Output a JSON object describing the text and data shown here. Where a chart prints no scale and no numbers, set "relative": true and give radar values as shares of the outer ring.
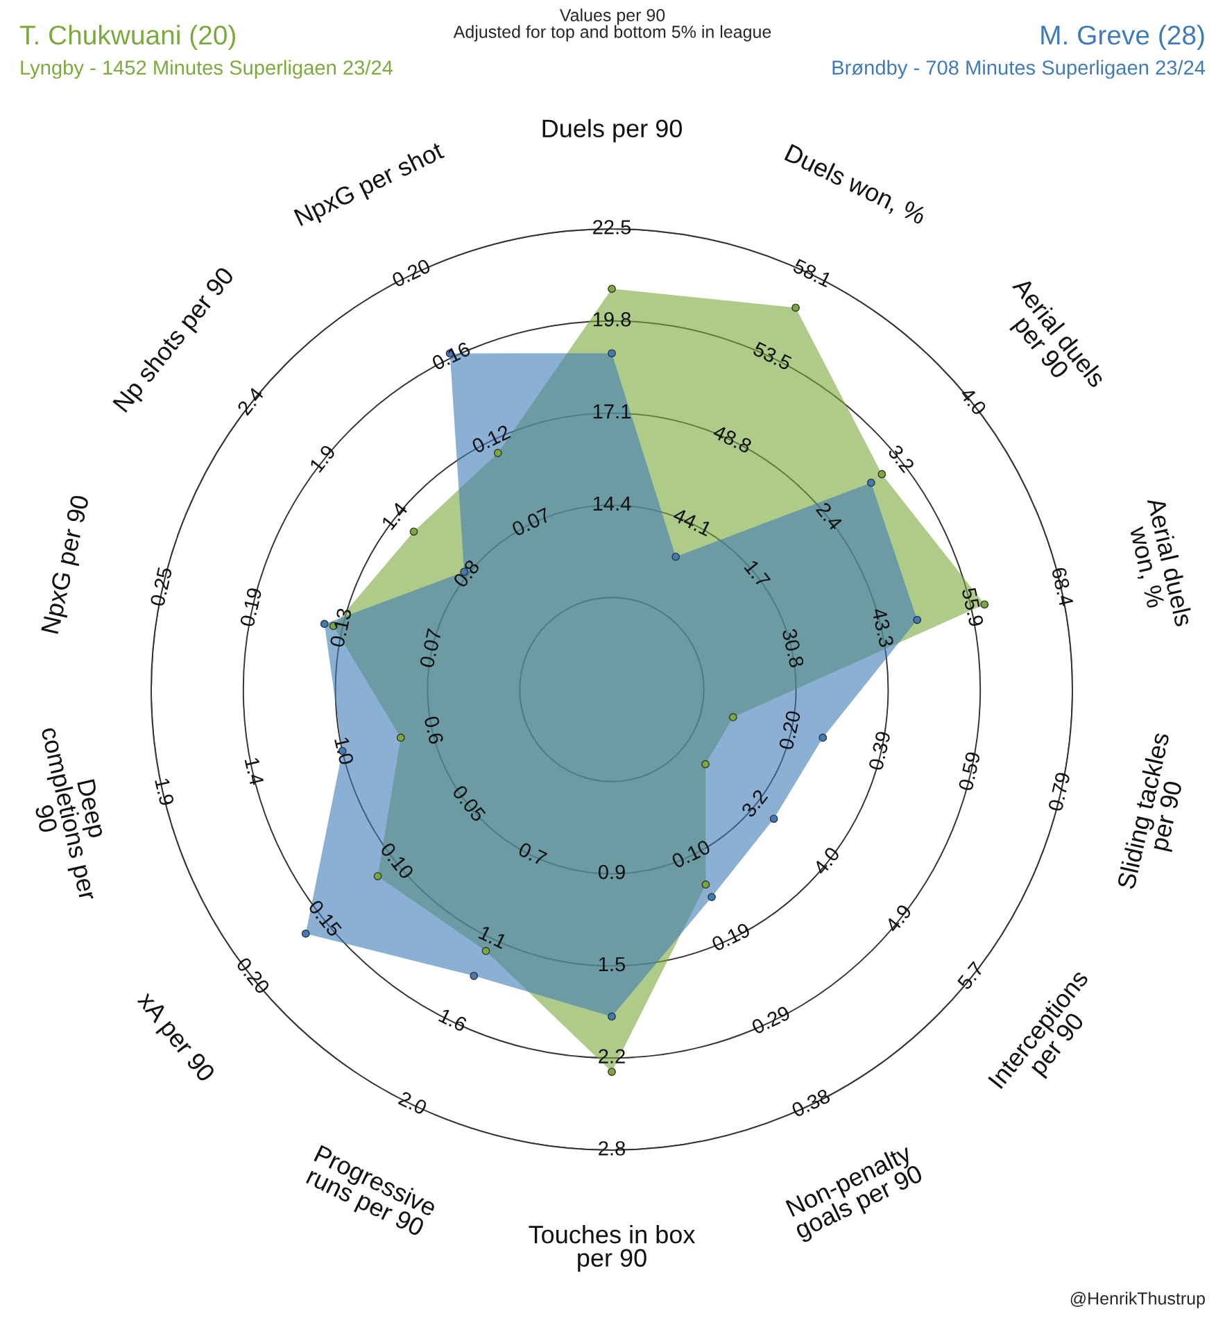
{
  "chart_data": {
    "type": "radar",
    "title": "Values per 90",
    "subtitle": "Adjusted for top and bottom 5% in league",
    "relative": true,
    "grid": true,
    "marker": "circle",
    "categories": [
      "Duels per 90",
      "Duels won, %",
      "Aerial duels\nper 90",
      "Aerial duels\nwon, %",
      "Sliding tackles\nper 90",
      "Interceptions\nper 90",
      "Non-penalty\ngoals per 90",
      "Touches in box\nper 90",
      "Progressive\nruns per 90",
      "xA per 90",
      "Deep\ncompletions per\n90",
      "NpxG per 90",
      "Np shots per 90",
      "NpxG per shot"
    ],
    "series": [
      {
        "name": "T. Chukwuani (20)\nLyngby - 1452 Minutes Superligaen 23/24",
        "color": "#7aa93c",
        "values": [
          0.87,
          0.92,
          0.75,
          0.83,
          0.27,
          0.26,
          0.47,
          0.83,
          0.63,
          0.65,
          0.47,
          0.62,
          0.55,
          0.57
        ]
      },
      {
        "name": "M. Greve (28)\nBrøndby - 708 Minutes Superligaen 23/24",
        "color": "#3f7bb5",
        "values": [
          0.73,
          0.32,
          0.72,
          0.68,
          0.47,
          0.45,
          0.5,
          0.71,
          0.69,
          0.85,
          0.6,
          0.64,
          0.41,
          0.81
        ]
      }
    ],
    "annotations": [
      "@HenrikThustrup",
      {
        "text": "14.4",
        "x": "Duels per 90"
      },
      {
        "text": "17.1",
        "x": "Duels per 90"
      },
      {
        "text": "19.8",
        "x": "Duels per 90"
      },
      {
        "text": "22.5",
        "x": "Duels per 90"
      },
      {
        "text": "44.1",
        "x": "Duels won, %"
      },
      {
        "text": "48.8",
        "x": "Duels won, %"
      },
      {
        "text": "53.5",
        "x": "Duels won, %"
      },
      {
        "text": "58.1",
        "x": "Duels won, %"
      },
      {
        "text": "1.7",
        "x": "Aerial duels\nper 90"
      },
      {
        "text": "2.4",
        "x": "Aerial duels\nper 90"
      },
      {
        "text": "3.2",
        "x": "Aerial duels\nper 90"
      },
      {
        "text": "4.0",
        "x": "Aerial duels\nper 90"
      },
      {
        "text": "30.8",
        "x": "Aerial duels\nwon, %"
      },
      {
        "text": "43.3",
        "x": "Aerial duels\nwon, %"
      },
      {
        "text": "55.9",
        "x": "Aerial duels\nwon, %"
      },
      {
        "text": "68.4",
        "x": "Aerial duels\nwon, %"
      },
      {
        "text": "0.20",
        "x": "Sliding tackles\nper 90"
      },
      {
        "text": "0.39",
        "x": "Sliding tackles\nper 90"
      },
      {
        "text": "0.59",
        "x": "Sliding tackles\nper 90"
      },
      {
        "text": "0.79",
        "x": "Sliding tackles\nper 90"
      },
      {
        "text": "3.2",
        "x": "Interceptions\nper 90"
      },
      {
        "text": "4.0",
        "x": "Interceptions\nper 90"
      },
      {
        "text": "4.9",
        "x": "Interceptions\nper 90"
      },
      {
        "text": "5.7",
        "x": "Interceptions\nper 90"
      },
      {
        "text": "0.10",
        "x": "Non-penalty\ngoals per 90"
      },
      {
        "text": "0.19",
        "x": "Non-penalty\ngoals per 90"
      },
      {
        "text": "0.29",
        "x": "Non-penalty\ngoals per 90"
      },
      {
        "text": "0.38",
        "x": "Non-penalty\ngoals per 90"
      },
      {
        "text": "0.9",
        "x": "Touches in box\nper 90"
      },
      {
        "text": "1.5",
        "x": "Touches in box\nper 90"
      },
      {
        "text": "2.2",
        "x": "Touches in box\nper 90"
      },
      {
        "text": "2.8",
        "x": "Touches in box\nper 90"
      },
      {
        "text": "0.7",
        "x": "Progressive\nruns per 90"
      },
      {
        "text": "1.1",
        "x": "Progressive\nruns per 90"
      },
      {
        "text": "1.6",
        "x": "Progressive\nruns per 90"
      },
      {
        "text": "2.0",
        "x": "Progressive\nruns per 90"
      },
      {
        "text": "0.05",
        "x": "xA per 90"
      },
      {
        "text": "0.10",
        "x": "xA per 90"
      },
      {
        "text": "0.15",
        "x": "xA per 90"
      },
      {
        "text": "0.20",
        "x": "xA per 90"
      },
      {
        "text": "0.6",
        "x": "Deep\ncompletions per\n90"
      },
      {
        "text": "1.0",
        "x": "Deep\ncompletions per\n90"
      },
      {
        "text": "1.4",
        "x": "Deep\ncompletions per\n90"
      },
      {
        "text": "1.9",
        "x": "Deep\ncompletions per\n90"
      },
      {
        "text": "0.07",
        "x": "NpxG per 90"
      },
      {
        "text": "0.13",
        "x": "NpxG per 90"
      },
      {
        "text": "0.19",
        "x": "NpxG per 90"
      },
      {
        "text": "0.25",
        "x": "NpxG per 90"
      },
      {
        "text": "0.8",
        "x": "Np shots per 90"
      },
      {
        "text": "1.4",
        "x": "Np shots per 90"
      },
      {
        "text": "1.9",
        "x": "Np shots per 90"
      },
      {
        "text": "2.4",
        "x": "Np shots per 90"
      },
      {
        "text": "0.07",
        "x": "NpxG per shot"
      },
      {
        "text": "0.12",
        "x": "NpxG per shot"
      },
      {
        "text": "0.16",
        "x": "NpxG per shot"
      },
      {
        "text": "0.20",
        "x": "NpxG per shot"
      }
    ]
  }
}
